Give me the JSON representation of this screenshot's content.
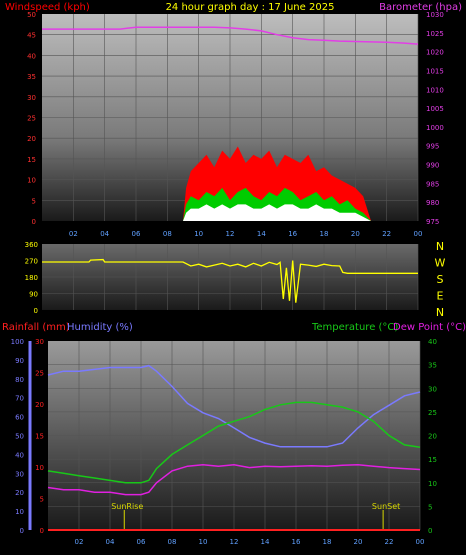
{
  "colors": {
    "windspeed": "#ff0000",
    "gust": "#00cc00",
    "wind_low": "#ffffff",
    "barometer": "#e23ee6",
    "direction": "#ffff00",
    "rainfall": "#ff2020",
    "humidity": "#7a7aff",
    "temperature": "#18c818",
    "dew_point": "#e020e0",
    "sun_marker": "#d8d800",
    "x_ticks": "#60a0ff"
  },
  "chart_data": [
    {
      "type": "area",
      "title": "24 hour graph day : 17 June 2025",
      "y_left_label": "Windspeed (kph)",
      "y_right_label": "Barometer (hpa)",
      "x_ticks": [
        "02",
        "04",
        "06",
        "08",
        "10",
        "12",
        "14",
        "16",
        "18",
        "20",
        "22",
        "00"
      ],
      "y_left_ticks": [
        "0",
        "5",
        "10",
        "15",
        "20",
        "25",
        "30",
        "35",
        "40",
        "45",
        "50"
      ],
      "y_right_ticks": [
        "975",
        "980",
        "985",
        "990",
        "995",
        "1000",
        "1005",
        "1010",
        "1015",
        "1020",
        "1025",
        "1030"
      ],
      "ylim_left": [
        0,
        50
      ],
      "ylim_right": [
        975,
        1030
      ],
      "xlim": [
        0,
        24
      ],
      "grid": true,
      "barometer": {
        "x": [
          0,
          1,
          2,
          3,
          4,
          5,
          6,
          7,
          8,
          9,
          10,
          11,
          12,
          13,
          14,
          15,
          16,
          17,
          18,
          19,
          20,
          21,
          22,
          23,
          24
        ],
        "y": [
          1026,
          1026,
          1026,
          1026,
          1026,
          1026,
          1026.5,
          1026.5,
          1026.5,
          1026.5,
          1026.5,
          1026.5,
          1026.3,
          1026,
          1025.5,
          1024.5,
          1023.7,
          1023.2,
          1023,
          1022.8,
          1022.7,
          1022.6,
          1022.5,
          1022.3,
          1022
        ]
      },
      "wind_avg": {
        "x": [
          0,
          9,
          9.2,
          9.5,
          10,
          10.5,
          11,
          11.5,
          12,
          12.5,
          13,
          13.5,
          14,
          14.5,
          15,
          15.5,
          16,
          16.5,
          17,
          17.5,
          18,
          18.5,
          19,
          19.5,
          20,
          20.5,
          21,
          24
        ],
        "y": [
          0,
          0,
          4,
          6,
          5,
          7,
          6,
          8,
          5,
          7,
          8,
          6,
          5,
          7,
          6,
          8,
          7,
          5,
          6,
          7,
          5,
          6,
          4,
          5,
          3,
          2,
          0,
          0
        ]
      },
      "wind_gust": {
        "x": [
          0,
          9,
          9.2,
          9.5,
          10,
          10.5,
          11,
          11.5,
          12,
          12.5,
          13,
          13.5,
          14,
          14.5,
          15,
          15.5,
          16,
          16.5,
          17,
          17.5,
          18,
          18.5,
          19,
          19.5,
          20,
          20.5,
          21,
          24
        ],
        "y": [
          0,
          0,
          8,
          12,
          14,
          16,
          13,
          17,
          15,
          18,
          14,
          16,
          15,
          17,
          13,
          16,
          15,
          14,
          16,
          12,
          13,
          11,
          10,
          9,
          8,
          6,
          0,
          0
        ]
      },
      "wind_low": {
        "x": [
          0,
          9,
          9.2,
          9.5,
          10,
          10.5,
          11,
          11.5,
          12,
          12.5,
          13,
          13.5,
          14,
          14.5,
          15,
          15.5,
          16,
          16.5,
          17,
          17.5,
          18,
          18.5,
          19,
          19.5,
          20,
          20.5,
          21,
          24
        ],
        "y": [
          0,
          0,
          2,
          3,
          3,
          4,
          3,
          4,
          3,
          4,
          4,
          3,
          3,
          4,
          3,
          4,
          4,
          3,
          3,
          4,
          3,
          3,
          2,
          2,
          2,
          1,
          0,
          0
        ]
      }
    },
    {
      "type": "line",
      "y_right_label_letters": [
        "N",
        "W",
        "S",
        "E",
        "N"
      ],
      "y_left_ticks": [
        "0",
        "90",
        "180",
        "270",
        "360"
      ],
      "ylim": [
        0,
        360
      ],
      "xlim": [
        0,
        24
      ],
      "wind_direction": {
        "x": [
          0,
          3,
          3.1,
          3.9,
          4,
          4.5,
          5,
          6,
          7,
          8,
          8.5,
          9,
          9.5,
          10,
          10.5,
          11,
          11.5,
          12,
          12.5,
          13,
          13.5,
          14,
          14.5,
          15,
          15.2,
          15.4,
          15.6,
          15.8,
          16,
          16.2,
          16.5,
          17,
          17.5,
          18,
          18.5,
          19,
          19.2,
          19.5,
          20,
          24
        ],
        "y": [
          262,
          262,
          272,
          275,
          262,
          262,
          262,
          262,
          262,
          262,
          262,
          262,
          240,
          250,
          235,
          245,
          255,
          240,
          250,
          235,
          255,
          240,
          260,
          248,
          260,
          60,
          230,
          50,
          270,
          40,
          250,
          245,
          238,
          250,
          242,
          240,
          205,
          200,
          200,
          200
        ]
      }
    },
    {
      "type": "line",
      "y_left_labels": [
        "Rainfall (mm)",
        "Humidity (%)"
      ],
      "y_right_labels": [
        "Temperature (°C)",
        "Dew Point (°C)"
      ],
      "x_ticks": [
        "02",
        "04",
        "06",
        "08",
        "10",
        "12",
        "14",
        "16",
        "18",
        "20",
        "22",
        "00"
      ],
      "y_humidity_ticks": [
        "0",
        "10",
        "20",
        "30",
        "40",
        "50",
        "60",
        "70",
        "80",
        "90",
        "100"
      ],
      "y_rain_ticks": [
        "0",
        "5",
        "10",
        "15",
        "20",
        "25",
        "30"
      ],
      "y_temp_ticks": [
        "0",
        "5",
        "10",
        "15",
        "20",
        "25",
        "30",
        "35",
        "40"
      ],
      "ylim_humidity": [
        0,
        100
      ],
      "ylim_temp": [
        0,
        40
      ],
      "xlim": [
        0,
        24
      ],
      "annotations": [
        {
          "text": "SunRise",
          "x": 4.92
        },
        {
          "text": "SunSet",
          "x": 21.62
        }
      ],
      "humidity": {
        "x": [
          0,
          1,
          2,
          3,
          4,
          5,
          6,
          6.5,
          7,
          8,
          9,
          10,
          11,
          12,
          13,
          14,
          15,
          16,
          17,
          18,
          19,
          20,
          21,
          22,
          23,
          24
        ],
        "y": [
          82,
          84,
          84,
          85,
          86,
          86,
          86,
          87,
          84,
          76,
          67,
          62,
          59,
          54,
          49,
          46,
          44,
          44,
          44,
          44,
          46,
          54,
          61,
          66,
          71,
          73
        ]
      },
      "temperature": {
        "x": [
          0,
          1,
          2,
          3,
          4,
          5,
          6,
          6.5,
          7,
          8,
          9,
          10,
          11,
          12,
          13,
          14,
          15,
          16,
          17,
          18,
          19,
          20,
          21,
          22,
          23,
          24
        ],
        "y": [
          12.5,
          12,
          11.5,
          11,
          10.5,
          10,
          10,
          10.5,
          13,
          16,
          18,
          20,
          22,
          23,
          24,
          25.5,
          26.5,
          27,
          27,
          26.5,
          26,
          25,
          23,
          20,
          18,
          17.5
        ]
      },
      "dew_point": {
        "x": [
          0,
          1,
          2,
          3,
          4,
          5,
          6,
          6.5,
          7,
          8,
          9,
          10,
          11,
          12,
          13,
          14,
          15,
          16,
          17,
          18,
          19,
          20,
          21,
          22,
          23,
          24
        ],
        "y": [
          9,
          8.5,
          8.5,
          8,
          8,
          7.5,
          7.5,
          8,
          10,
          12.5,
          13.5,
          13.8,
          13.5,
          13.8,
          13.2,
          13.5,
          13.4,
          13.5,
          13.6,
          13.5,
          13.7,
          13.8,
          13.5,
          13.2,
          13,
          12.8
        ]
      },
      "rainfall": {
        "x": [
          0,
          24
        ],
        "y": [
          0,
          0
        ]
      }
    }
  ]
}
